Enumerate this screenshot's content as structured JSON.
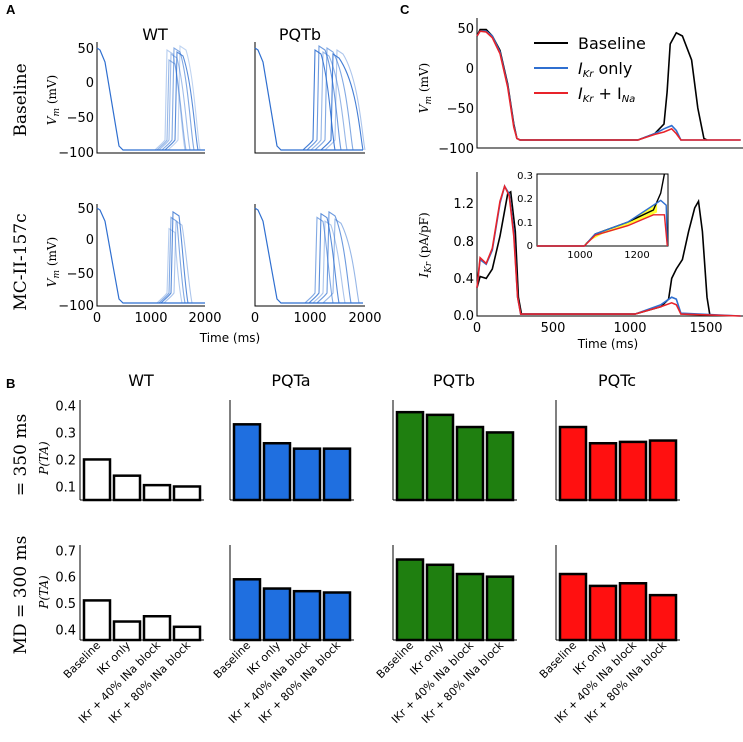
{
  "panel_letters": {
    "a": "A",
    "b": "B",
    "c": "C"
  },
  "colors": {
    "wt": "#ffffff",
    "pqta": "#1f6fe0",
    "pqtb": "#1f7f10",
    "pqtc": "#ff1010",
    "trace": "#2f6fd0",
    "baseline": "#000000",
    "ikr_only": "#2f6fd0",
    "ikr_ina": "#e8232a",
    "yellow": "#ffff33"
  },
  "panelA": {
    "col_titles": [
      "WT",
      "PQTb"
    ],
    "row_titles": [
      "Baseline",
      "MC-II-157c"
    ],
    "ylabel": "V",
    "ylabel_sub": "m",
    "ylabel_unit": " (mV)",
    "xlabel": "Time (ms)",
    "yticks": [
      "50",
      "0",
      "−50",
      "−100"
    ],
    "xticks": [
      "0",
      "1000",
      "2000"
    ]
  },
  "panelC": {
    "legend": {
      "baseline": "Baseline",
      "ikr_only_main": "I",
      "ikr_only_sub": "Kr",
      "ikr_only_rest": " only",
      "ikr_ina_main": "I",
      "ikr_ina_sub": "Kr",
      "ikr_ina_mid": " + I",
      "ikr_ina_sub2": "Na"
    },
    "top_ylabel": "V",
    "top_ylabel_sub": "m",
    "top_ylabel_unit": " (mV)",
    "top_yticks": [
      "50",
      "0",
      "−50",
      "−100"
    ],
    "bot_ylabel": "I",
    "bot_ylabel_sub": "Kr",
    "bot_ylabel_unit": " (pA/pF)",
    "bot_yticks": [
      "1.2",
      "0.8",
      "0.4",
      "0.0"
    ],
    "xticks": [
      "0",
      "500",
      "1000",
      "1500"
    ],
    "xlabel": "Time (ms)",
    "inset_yticks": [
      "0.3",
      "0.2",
      "0.1",
      "0"
    ],
    "inset_xticks": [
      "1000",
      "1200"
    ]
  },
  "panelB": {
    "row_labels": [
      "= 350 ms",
      "MD = 300 ms"
    ],
    "ylabel": "P(TA)",
    "xcat_labels": [
      "Baseline",
      "I_Kr only",
      "I_Kr + 40% I_Na block",
      "I_Kr + 80% I_Na block"
    ]
  },
  "chart_data": [
    {
      "type": "bar",
      "title": "WT",
      "row": "= 350 ms",
      "categories": [
        "Baseline",
        "IKr only",
        "IKr + 40% INa block",
        "IKr + 80% INa block"
      ],
      "values": [
        0.2,
        0.14,
        0.105,
        0.1
      ],
      "ylim": [
        0.05,
        0.42
      ],
      "yticks": [
        0.1,
        0.2,
        0.3,
        0.4
      ],
      "ylabel": "P(TA)"
    },
    {
      "type": "bar",
      "title": "PQTa",
      "row": "= 350 ms",
      "categories": [
        "Baseline",
        "IKr only",
        "IKr + 40% INa block",
        "IKr + 80% INa block"
      ],
      "values": [
        0.33,
        0.26,
        0.24,
        0.24
      ],
      "ylim": [
        0.05,
        0.42
      ]
    },
    {
      "type": "bar",
      "title": "PQTb",
      "row": "= 350 ms",
      "categories": [
        "Baseline",
        "IKr only",
        "IKr + 40% INa block",
        "IKr + 80% INa block"
      ],
      "values": [
        0.375,
        0.365,
        0.32,
        0.3
      ],
      "ylim": [
        0.05,
        0.42
      ]
    },
    {
      "type": "bar",
      "title": "PQTc",
      "row": "= 350 ms",
      "categories": [
        "Baseline",
        "IKr only",
        "IKr + 40% INa block",
        "IKr + 80% INa block"
      ],
      "values": [
        0.32,
        0.26,
        0.265,
        0.27
      ],
      "ylim": [
        0.05,
        0.42
      ]
    },
    {
      "type": "bar",
      "title": "WT",
      "row": "MD = 300 ms",
      "categories": [
        "Baseline",
        "IKr only",
        "IKr + 40% INa block",
        "IKr + 80% INa block"
      ],
      "values": [
        0.51,
        0.43,
        0.45,
        0.41
      ],
      "ylim": [
        0.36,
        0.72
      ],
      "yticks": [
        0.4,
        0.5,
        0.6,
        0.7
      ],
      "ylabel": "P(TA)"
    },
    {
      "type": "bar",
      "title": "PQTa",
      "row": "MD = 300 ms",
      "categories": [
        "Baseline",
        "IKr only",
        "IKr + 40% INa block",
        "IKr + 80% INa block"
      ],
      "values": [
        0.59,
        0.555,
        0.545,
        0.54
      ],
      "ylim": [
        0.36,
        0.72
      ]
    },
    {
      "type": "bar",
      "title": "PQTb",
      "row": "MD = 300 ms",
      "categories": [
        "Baseline",
        "IKr only",
        "IKr + 40% INa block",
        "IKr + 80% INa block"
      ],
      "values": [
        0.665,
        0.645,
        0.61,
        0.6
      ],
      "ylim": [
        0.36,
        0.72
      ]
    },
    {
      "type": "bar",
      "title": "PQTc",
      "row": "MD = 300 ms",
      "categories": [
        "Baseline",
        "IKr only",
        "IKr + 40% INa block",
        "IKr + 80% INa block"
      ],
      "values": [
        0.61,
        0.565,
        0.575,
        0.53
      ],
      "ylim": [
        0.36,
        0.72
      ]
    }
  ]
}
